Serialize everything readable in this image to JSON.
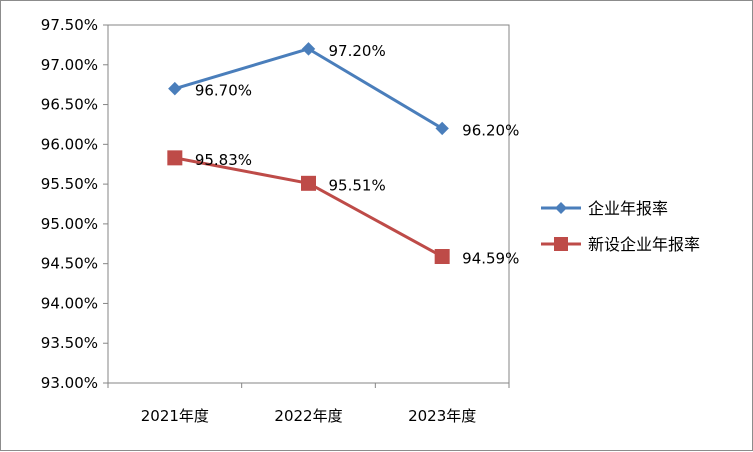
{
  "chart_data": {
    "type": "line",
    "categories": [
      "2021年度",
      "2022年度",
      "2023年度"
    ],
    "series": [
      {
        "name": "企业年报率",
        "values": [
          96.7,
          97.2,
          96.2
        ],
        "labels": [
          "96.70%",
          "97.20%",
          "96.20%"
        ],
        "color": "#4a7ebb",
        "marker": "diamond"
      },
      {
        "name": "新设企业年报率",
        "values": [
          95.83,
          95.51,
          94.59
        ],
        "labels": [
          "95.83%",
          "95.51%",
          "94.59%"
        ],
        "color": "#be4b48",
        "marker": "square"
      }
    ],
    "y_ticks": [
      "93.00%",
      "93.50%",
      "94.00%",
      "94.50%",
      "95.00%",
      "95.50%",
      "96.00%",
      "96.50%",
      "97.00%",
      "97.50%"
    ],
    "ylim": [
      93.0,
      97.5
    ],
    "title": "",
    "xlabel": "",
    "ylabel": "",
    "grid": false,
    "legend_position": "right"
  }
}
